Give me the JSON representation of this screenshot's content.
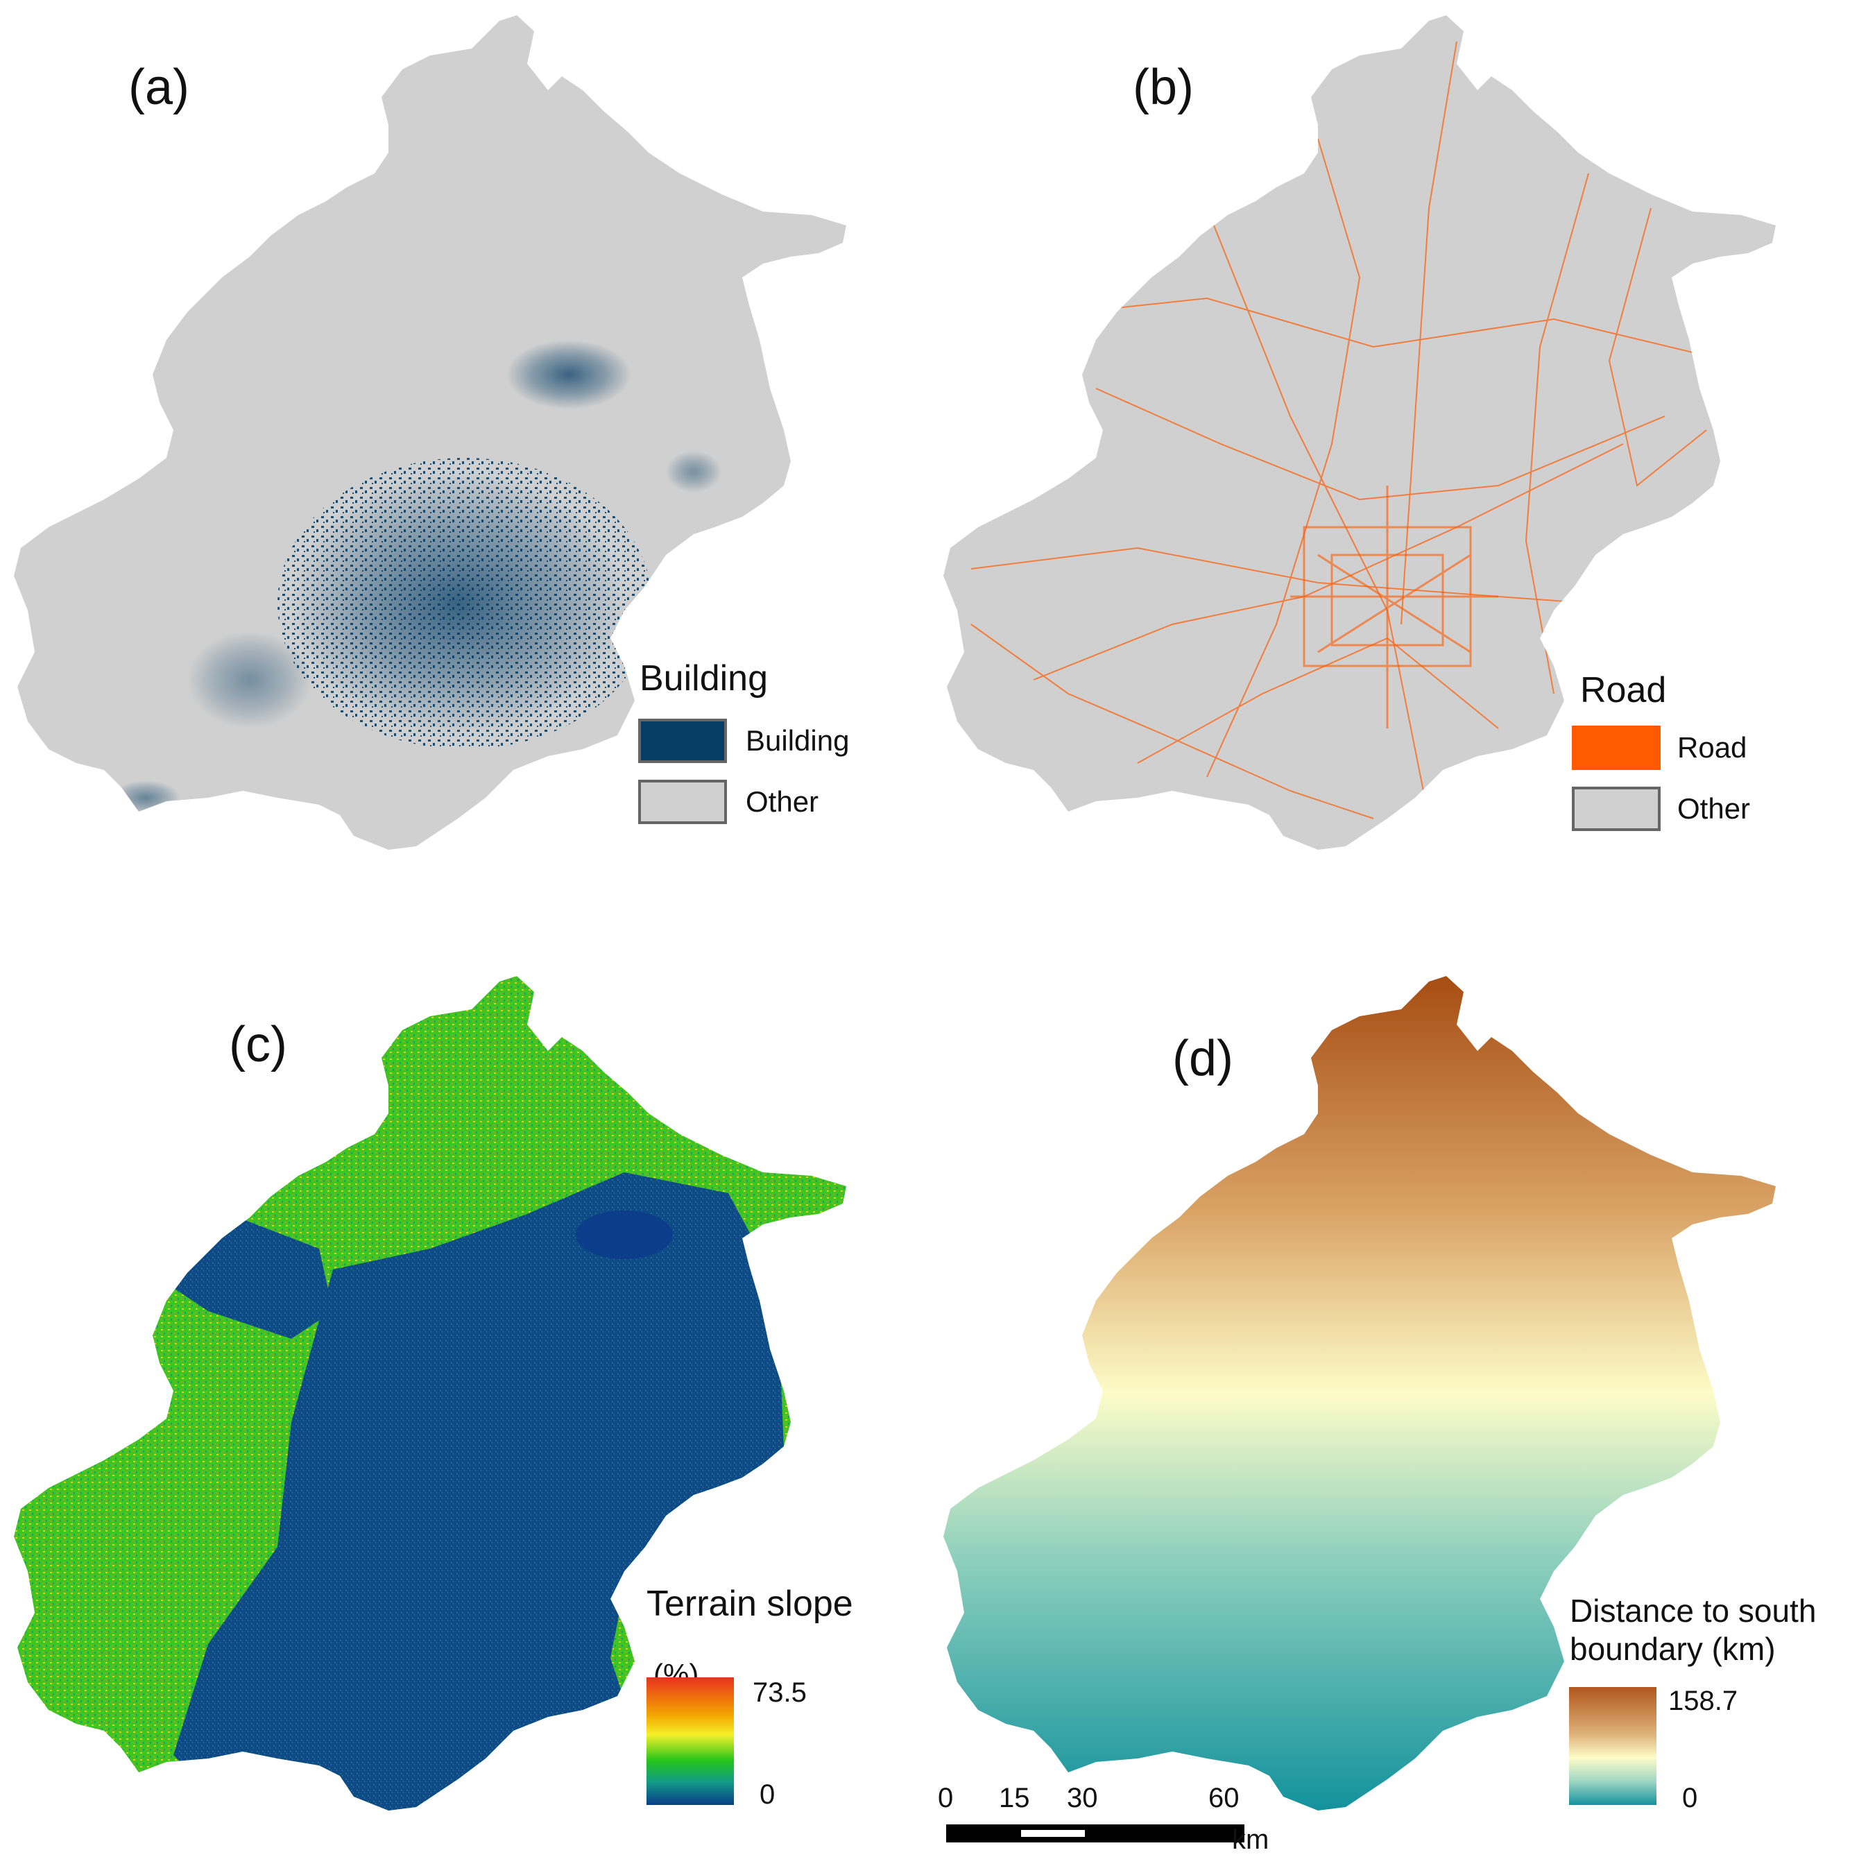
{
  "panels": {
    "a": {
      "label": "(a)",
      "legend_title": "Building",
      "items": [
        {
          "label": "Building",
          "color": "#063e67"
        },
        {
          "label": "Other",
          "color": "#d0d0d0"
        }
      ]
    },
    "b": {
      "label": "(b)",
      "legend_title": "Road",
      "items": [
        {
          "label": "Road",
          "color": "#ff5a00"
        },
        {
          "label": "Other",
          "color": "#d0d0d0"
        }
      ]
    },
    "c": {
      "label": "(c)",
      "legend_title": "Terrain slope",
      "legend_unit": "(%)",
      "max": "73.5",
      "min": "0",
      "ramp_colors": [
        "#e8321e",
        "#f4a800",
        "#f5f02a",
        "#27c51a",
        "#119b86",
        "#0b3d8a"
      ]
    },
    "d": {
      "label": "(d)",
      "legend_title_line1": "Distance to south",
      "legend_title_line2": "boundary (km)",
      "max": "158.7",
      "min": "0",
      "ramp_colors": [
        "#b0561c",
        "#deb27a",
        "#fdfcc8",
        "#9fd6c4",
        "#14929c"
      ]
    }
  },
  "scale_bar": {
    "ticks": [
      "0",
      "15",
      "30",
      "60"
    ],
    "unit": "km"
  },
  "colors": {
    "other": "#d0d0d0",
    "building": "#063e67",
    "road": "#ff5a00",
    "slope_low": "#0e4a86",
    "slope_high": "#3fcf22"
  }
}
